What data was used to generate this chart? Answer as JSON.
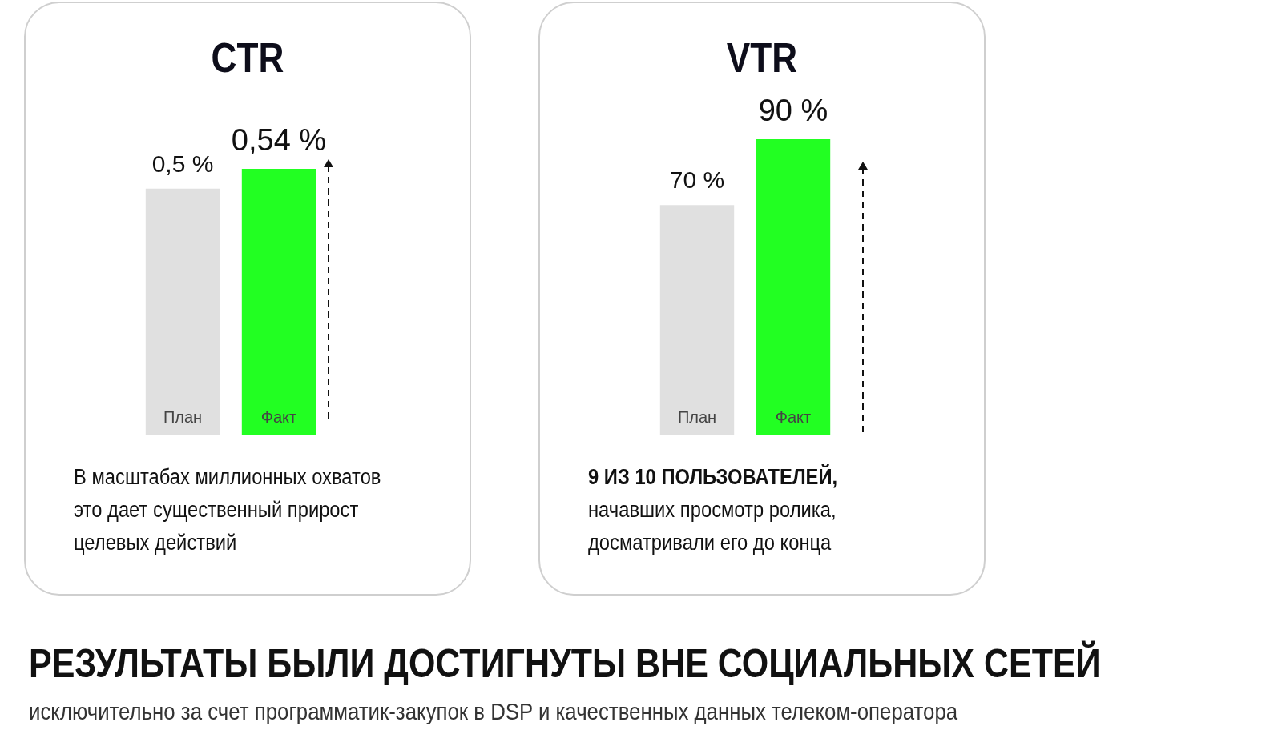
{
  "chart_data": [
    {
      "type": "bar",
      "title": "CTR",
      "categories": [
        "План",
        "Факт"
      ],
      "values": [
        0.5,
        0.54
      ],
      "colors": [
        "#e0e0e0",
        "#22ff22"
      ],
      "value_labels": [
        "0,5 %",
        "0,54 %"
      ],
      "tick_labels": false,
      "legend": false,
      "annotations": [
        "В масштабах миллионных охватов",
        "это дает существенный прирост",
        "целевых действий"
      ]
    },
    {
      "type": "bar",
      "title": "VTR",
      "categories": [
        "План",
        "Факт"
      ],
      "values": [
        70,
        90
      ],
      "colors": [
        "#e0e0e0",
        "#22ff22"
      ],
      "value_labels": [
        "70 %",
        "90 %"
      ],
      "tick_labels": false,
      "legend": false,
      "annotations": [
        "9 ИЗ 10 ПОЛЬЗОВАТЕЛЕЙ,",
        "начавших просмотр ролика,",
        "досматривали его до конца"
      ]
    },
    {
      "type": "other",
      "title": "РЕЗУЛЬТАТЫ БЫЛИ ДОСТИГНУТЫ ВНЕ СОЦИАЛЬНЫХ СЕТЕЙ",
      "subtitle": "исключительно за счет программатик-закупок в DSP и качественных данных телеком-оператора"
    }
  ]
}
